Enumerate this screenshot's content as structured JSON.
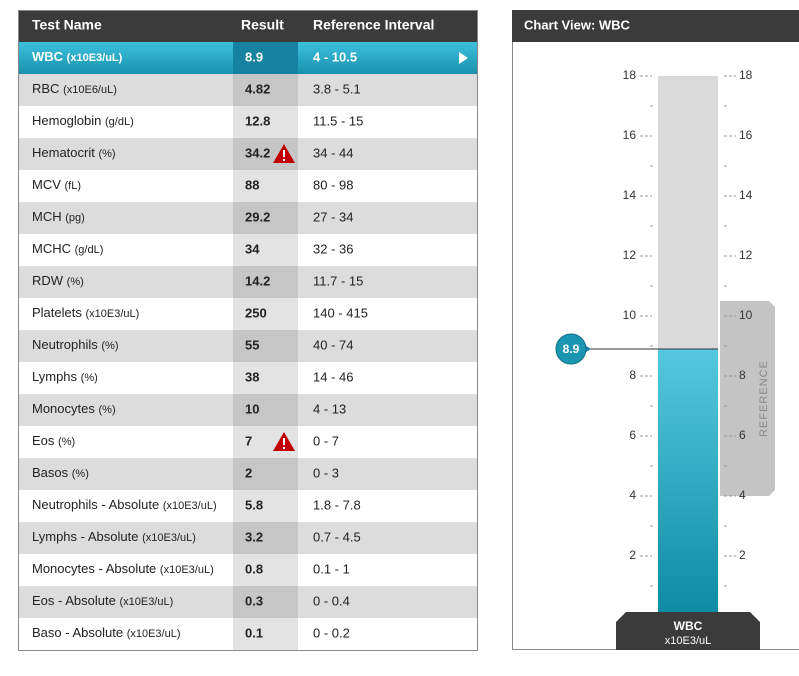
{
  "table": {
    "headers": [
      "Test Name",
      "Result",
      "Reference Interval"
    ],
    "selected_row": 0,
    "rows": [
      {
        "name": "WBC",
        "unit": "(x10E3/uL)",
        "result": "8.9",
        "reference": "4 - 10.5",
        "warning": false
      },
      {
        "name": "RBC",
        "unit": "(x10E6/uL)",
        "result": "4.82",
        "reference": "3.8 - 5.1",
        "warning": false
      },
      {
        "name": "Hemoglobin",
        "unit": "(g/dL)",
        "result": "12.8",
        "reference": "11.5 - 15",
        "warning": false
      },
      {
        "name": "Hematocrit",
        "unit": "(%)",
        "result": "34.2",
        "reference": "34 - 44",
        "warning": true
      },
      {
        "name": "MCV",
        "unit": "(fL)",
        "result": "88",
        "reference": "80 - 98",
        "warning": false
      },
      {
        "name": "MCH",
        "unit": "(pg)",
        "result": "29.2",
        "reference": "27 - 34",
        "warning": false
      },
      {
        "name": "MCHC",
        "unit": "(g/dL)",
        "result": "34",
        "reference": "32 - 36",
        "warning": false
      },
      {
        "name": "RDW",
        "unit": "(%)",
        "result": "14.2",
        "reference": "11.7 - 15",
        "warning": false
      },
      {
        "name": "Platelets",
        "unit": "(x10E3/uL)",
        "result": "250",
        "reference": "140 - 415",
        "warning": false
      },
      {
        "name": "Neutrophils",
        "unit": "(%)",
        "result": "55",
        "reference": "40 - 74",
        "warning": false
      },
      {
        "name": "Lymphs",
        "unit": "(%)",
        "result": "38",
        "reference": "14 - 46",
        "warning": false
      },
      {
        "name": "Monocytes",
        "unit": "(%)",
        "result": "10",
        "reference": "4 - 13",
        "warning": false
      },
      {
        "name": "Eos",
        "unit": "(%)",
        "result": "7",
        "reference": "0 - 7",
        "warning": true
      },
      {
        "name": "Basos",
        "unit": "(%)",
        "result": "2",
        "reference": "0 - 3",
        "warning": false
      },
      {
        "name": "Neutrophils - Absolute",
        "unit": "(x10E3/uL)",
        "result": "5.8",
        "reference": "1.8 - 7.8",
        "warning": false
      },
      {
        "name": "Lymphs - Absolute",
        "unit": "(x10E3/uL)",
        "result": "3.2",
        "reference": "0.7 - 4.5",
        "warning": false
      },
      {
        "name": "Monocytes - Absolute",
        "unit": "(x10E3/uL)",
        "result": "0.8",
        "reference": "0.1 - 1",
        "warning": false
      },
      {
        "name": "Eos - Absolute",
        "unit": "(x10E3/uL)",
        "result": "0.3",
        "reference": "0 - 0.4",
        "warning": false
      },
      {
        "name": "Baso - Absolute",
        "unit": "(x10E3/uL)",
        "result": "0.1",
        "reference": "0 - 0.2",
        "warning": false
      }
    ]
  },
  "chart": {
    "title": "Chart View: WBC",
    "test_name": "WBC",
    "unit": "x10E3/uL",
    "value": 8.9,
    "reference_label": "REFERENCE",
    "reference_range": [
      4,
      10.5
    ],
    "ylim": [
      0,
      18
    ],
    "yticks": [
      2,
      4,
      6,
      8,
      10,
      12,
      14,
      16,
      18
    ],
    "minor_ticks": [
      1,
      3,
      5,
      7,
      9,
      11,
      13,
      15,
      17
    ]
  }
}
